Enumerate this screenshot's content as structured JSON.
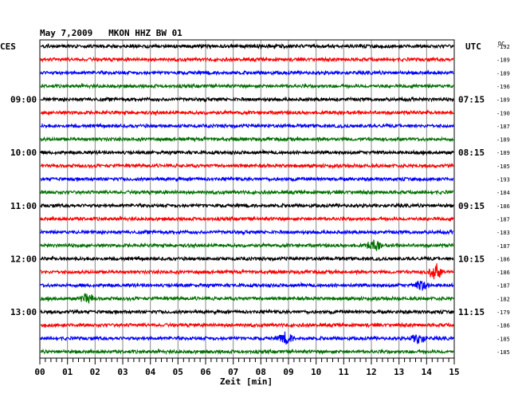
{
  "title": "May 7,2009   MKON HHZ BW 01",
  "left_axis_label": "CES",
  "right_axis_label": "UTC",
  "dc_label": "DC",
  "chart_data": {
    "type": "line",
    "title": "May 7,2009   MKON HHZ BW 01",
    "xlabel": "Zeit [min]",
    "ylabel_left": "CES",
    "ylabel_right": "UTC",
    "xlim": [
      0,
      15
    ],
    "x_ticks": [
      "00",
      "01",
      "02",
      "03",
      "04",
      "05",
      "06",
      "07",
      "08",
      "09",
      "10",
      "11",
      "12",
      "13",
      "14",
      "15"
    ],
    "left_time_labels": [
      {
        "row": 4,
        "label": "09:00"
      },
      {
        "row": 8,
        "label": "10:00"
      },
      {
        "row": 12,
        "label": "11:00"
      },
      {
        "row": 16,
        "label": "12:00"
      },
      {
        "row": 20,
        "label": "13:00"
      }
    ],
    "right_time_labels": [
      {
        "row": 4,
        "label": "07:15"
      },
      {
        "row": 8,
        "label": "08:15"
      },
      {
        "row": 12,
        "label": "09:15"
      },
      {
        "row": 16,
        "label": "10:15"
      },
      {
        "row": 20,
        "label": "11:15"
      }
    ],
    "row_colors": [
      "#000000",
      "#ff0000",
      "#0000ff",
      "#007000"
    ],
    "dc_values": [
      "-192",
      "-189",
      "-189",
      "-196",
      "-189",
      "-190",
      "-187",
      "-189",
      "-189",
      "-185",
      "-193",
      "-184",
      "-186",
      "-187",
      "-183",
      "-187",
      "-186",
      "-186",
      "-187",
      "-182",
      "-179",
      "-186",
      "-185",
      "-185"
    ],
    "events": [
      {
        "row": 17,
        "minute": 14.3,
        "amplitude": 2.4
      },
      {
        "row": 22,
        "minute": 8.9,
        "amplitude": 1.6
      },
      {
        "row": 22,
        "minute": 13.7,
        "amplitude": 1.5
      },
      {
        "row": 18,
        "minute": 13.8,
        "amplitude": 1.3
      },
      {
        "row": 15,
        "minute": 12.1,
        "amplitude": 1.5
      },
      {
        "row": 19,
        "minute": 1.7,
        "amplitude": 1.3
      }
    ]
  }
}
